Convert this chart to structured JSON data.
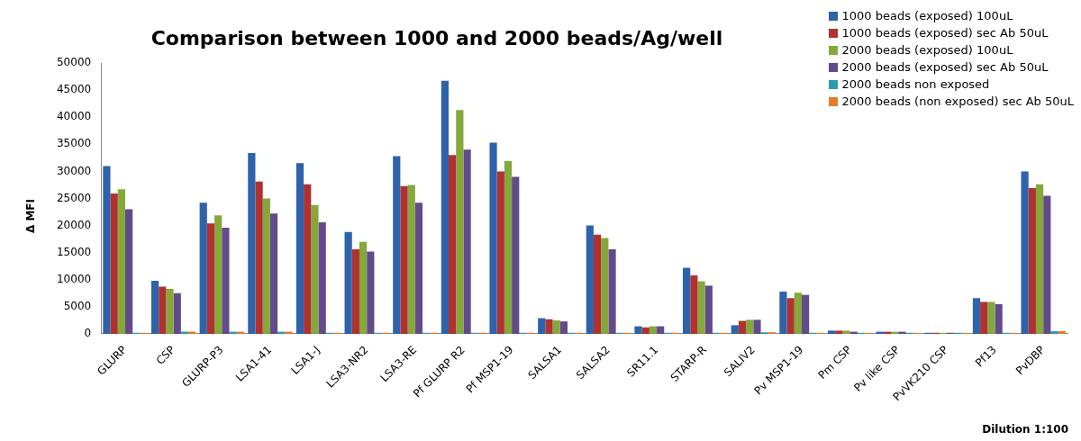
{
  "chart_data": {
    "type": "bar",
    "title": "Comparison between 1000 and 2000 beads/Ag/well",
    "ylabel": "Δ MFI",
    "categories": [
      "GLURP",
      "CSP",
      "GLURP-P3",
      "LSA1-41",
      "LSA1-J",
      "LSA3-NR2",
      "LSA3-RE",
      "Pf GLURP R2",
      "Pf MSP1-19",
      "SALSA1",
      "SALSA2",
      "SR11.1",
      "STARP-R",
      "SALIV2",
      "Pv MSP1-19",
      "Pm CSP",
      "Pv like CSP",
      "PvVK210 CSP",
      "Pf13",
      "PvDBP"
    ],
    "series": [
      {
        "name": "1000 beads (exposed) 100uL",
        "color": "#2e63aa",
        "values": [
          31000,
          9800,
          24200,
          33400,
          31500,
          18800,
          32800,
          46700,
          35300,
          2900,
          20000,
          1400,
          12200,
          1600,
          7800,
          600,
          400,
          200,
          6600,
          30000
        ]
      },
      {
        "name": "1000 beads (exposed) sec Ab 50uL",
        "color": "#b0312f",
        "values": [
          25900,
          8700,
          20400,
          28100,
          27600,
          15600,
          27300,
          33000,
          30000,
          2700,
          18300,
          1200,
          10800,
          2400,
          6600,
          600,
          400,
          200,
          5900,
          26900
        ]
      },
      {
        "name": "2000 beads (exposed) 100uL",
        "color": "#84a83a",
        "values": [
          26700,
          8300,
          21900,
          25000,
          23800,
          17000,
          27500,
          41300,
          31900,
          2500,
          17700,
          1400,
          9700,
          2600,
          7600,
          600,
          400,
          200,
          5900,
          27600
        ]
      },
      {
        "name": "2000 beads (exposed) sec Ab 50uL",
        "color": "#634a8c",
        "values": [
          23000,
          7500,
          19600,
          22200,
          20600,
          15200,
          24200,
          34000,
          29000,
          2300,
          15600,
          1400,
          8900,
          2600,
          7200,
          400,
          400,
          200,
          5500,
          25500
        ]
      },
      {
        "name": "2000 beads non exposed",
        "color": "#2b9ab3",
        "values": [
          200,
          400,
          400,
          400,
          200,
          200,
          200,
          200,
          200,
          200,
          200,
          200,
          200,
          300,
          200,
          200,
          200,
          200,
          200,
          500
        ]
      },
      {
        "name": "2000 beads (non exposed) sec Ab 50uL",
        "color": "#e8792a",
        "values": [
          200,
          400,
          400,
          400,
          200,
          200,
          200,
          200,
          200,
          200,
          200,
          200,
          200,
          300,
          200,
          200,
          200,
          200,
          200,
          500
        ]
      }
    ],
    "ylim": [
      0,
      50000
    ],
    "yticks": [
      0,
      5000,
      10000,
      15000,
      20000,
      25000,
      30000,
      35000,
      40000,
      45000,
      50000
    ],
    "grid": false,
    "legend": "top right",
    "annotations": [
      "Dilution 1:100"
    ]
  }
}
